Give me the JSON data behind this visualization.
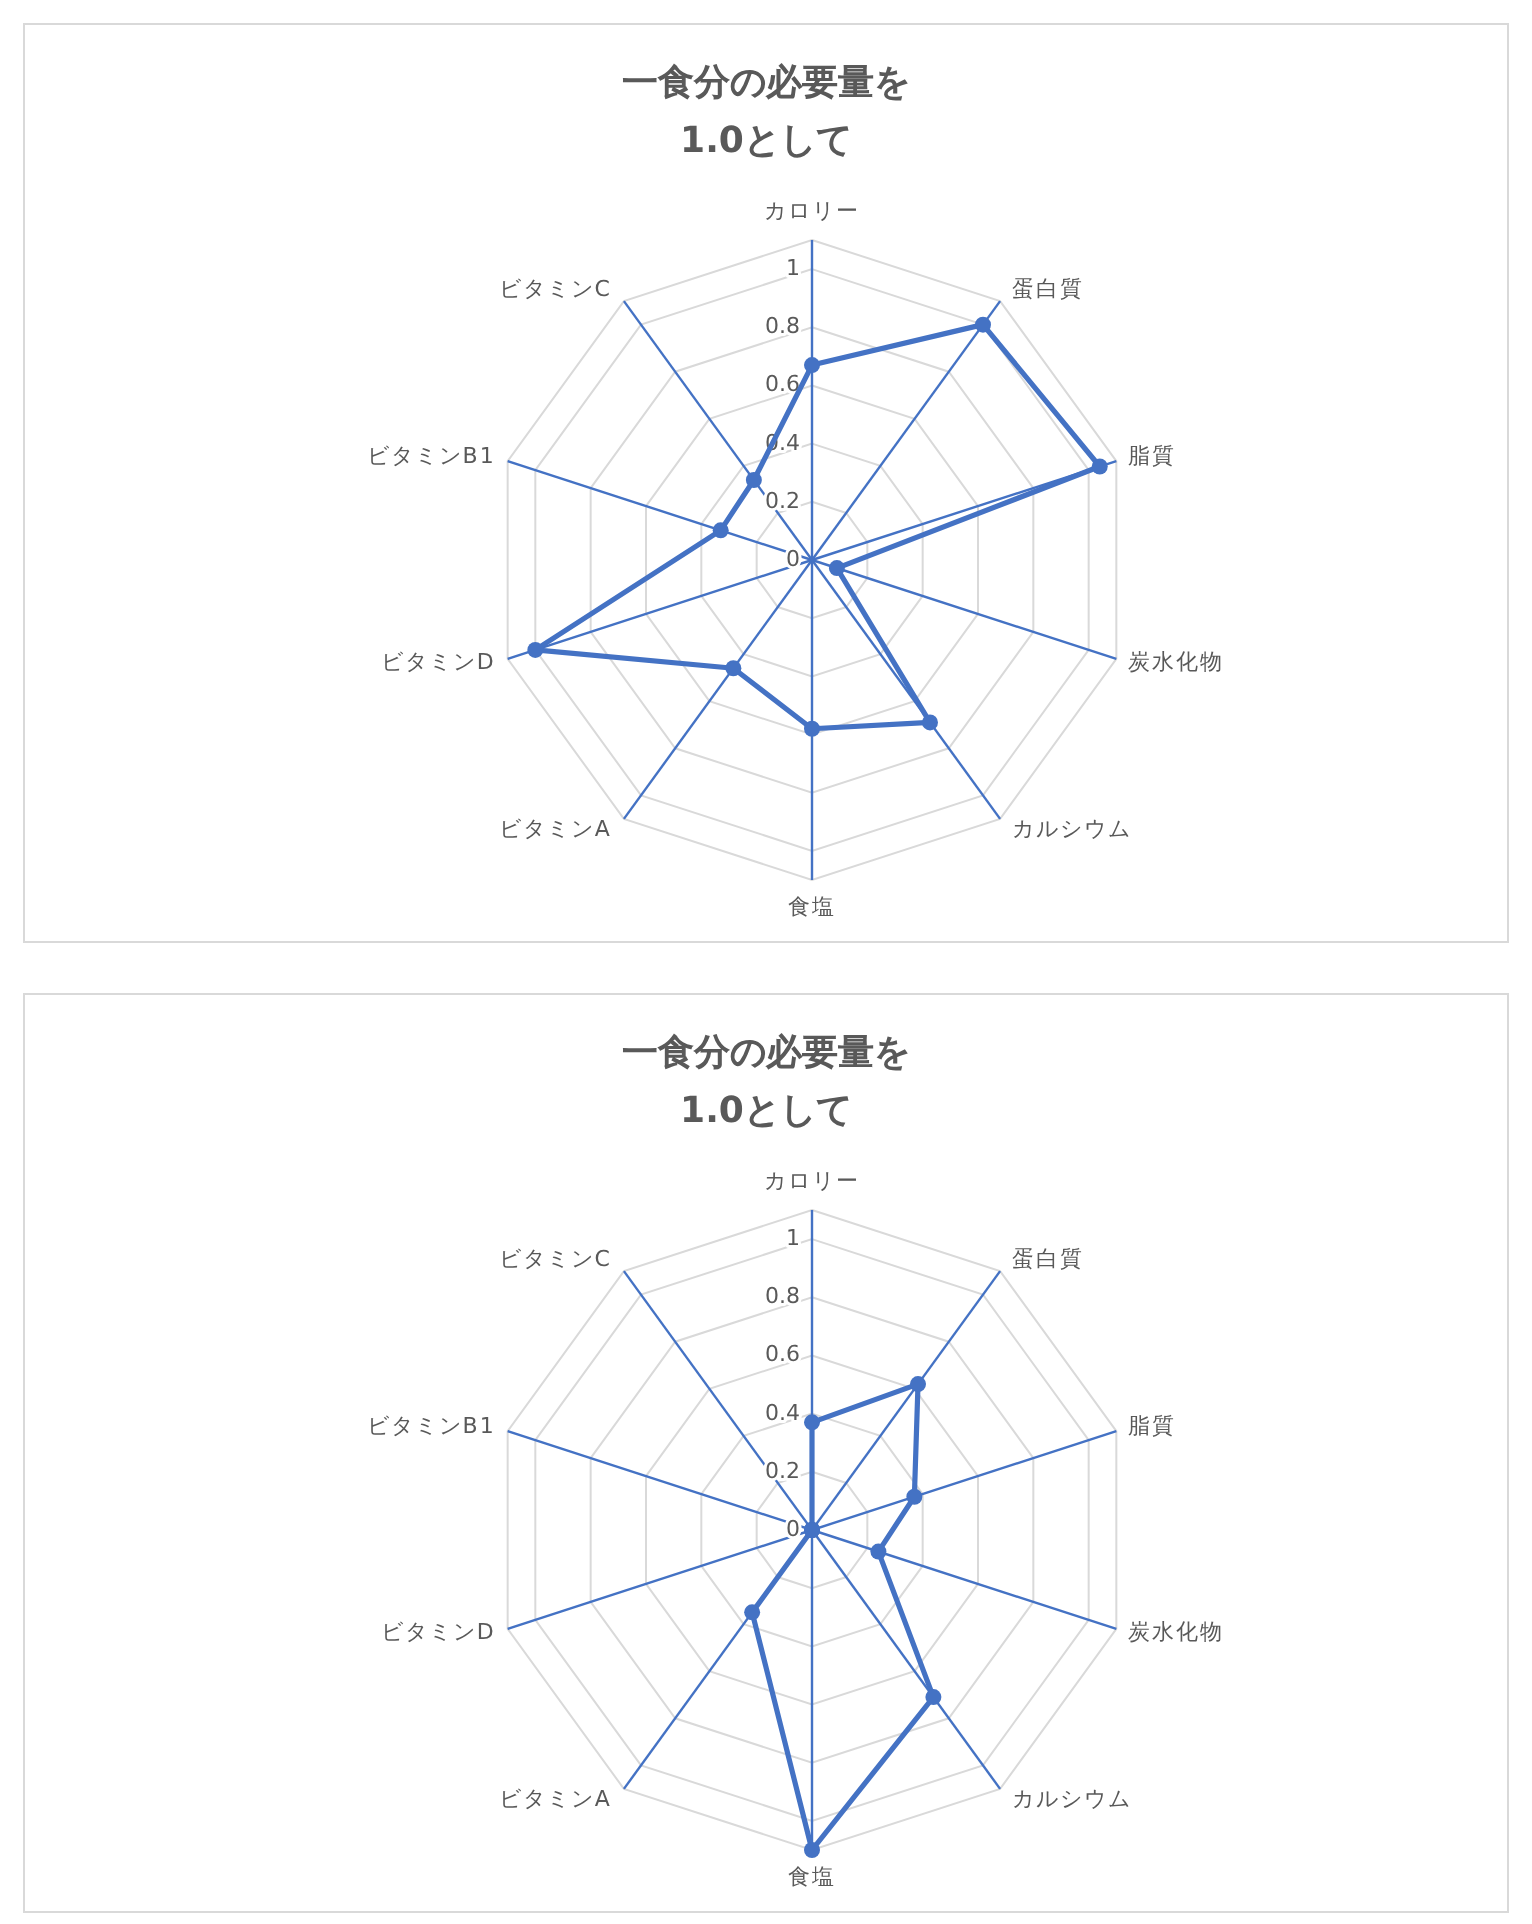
{
  "chart_data": [
    {
      "type": "radar",
      "title": "一食分の必要量を\n1.0として",
      "categories": [
        "カロリー",
        "蛋白質",
        "脂質",
        "炭水化物",
        "カルシウム",
        "食塩",
        "ビタミンA",
        "ビタミンD",
        "ビタミンB1",
        "ビタミンC"
      ],
      "series": [
        {
          "color": "#4472c4",
          "values": [
            0.67,
            1.0,
            1.04,
            0.09,
            0.69,
            0.58,
            0.46,
            1.0,
            0.33,
            0.34
          ]
        }
      ],
      "ylim": [
        0,
        1.1
      ],
      "yticks": [
        0,
        0.2,
        0.4,
        0.6,
        0.8,
        1
      ],
      "grid": true,
      "marker": "circle"
    },
    {
      "type": "radar",
      "title": "一食分の必要量を\n1.0として",
      "categories": [
        "カロリー",
        "蛋白質",
        "脂質",
        "炭水化物",
        "カルシウム",
        "食塩",
        "ビタミンA",
        "ビタミンD",
        "ビタミンB1",
        "ビタミンC"
      ],
      "series": [
        {
          "color": "#4472c4",
          "values": [
            0.37,
            0.62,
            0.37,
            0.24,
            0.71,
            1.1,
            0.35,
            0,
            0,
            0
          ]
        }
      ],
      "ylim": [
        0,
        1.1
      ],
      "yticks": [
        0,
        0.2,
        0.4,
        0.6,
        0.8,
        1
      ],
      "grid": true,
      "marker": "circle"
    }
  ]
}
